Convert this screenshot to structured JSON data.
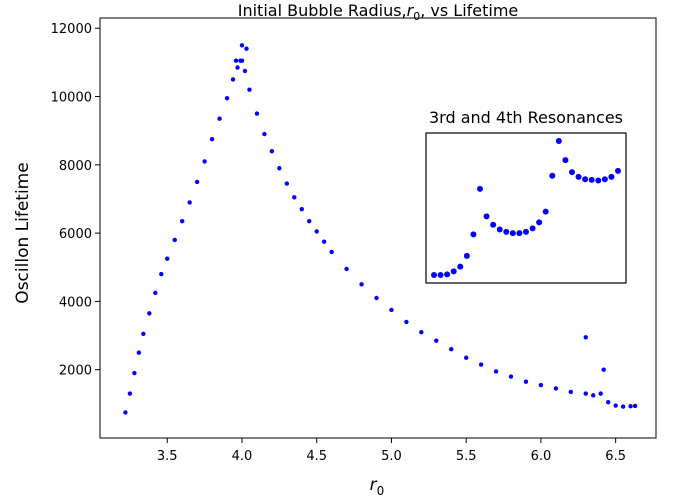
{
  "chart_data": {
    "type": "scatter",
    "title_text": "Initial Bubble Radius,",
    "title_symbol": "r",
    "title_subscript": "0",
    "title_tail": ", vs  Lifetime",
    "xlabel_symbol": "r",
    "xlabel_subscript": "0",
    "ylabel": "Oscillon Lifetime",
    "xlim": [
      3.05,
      6.77
    ],
    "ylim": [
      0,
      12300
    ],
    "xticks": [
      "3.5",
      "4.0",
      "4.5",
      "5.0",
      "5.5",
      "6.0",
      "6.5"
    ],
    "yticks": [
      "2000",
      "4000",
      "6000",
      "8000",
      "10000",
      "12000"
    ],
    "grid": false,
    "marker_color": "#0000ff",
    "series": [
      {
        "x": [
          3.22,
          3.25,
          3.28,
          3.31,
          3.34,
          3.38,
          3.42,
          3.46,
          3.5,
          3.55,
          3.6,
          3.65,
          3.7,
          3.75,
          3.8,
          3.85,
          3.9,
          3.94,
          3.97,
          3.99,
          4.0,
          4.02,
          4.05,
          4.1,
          4.15,
          4.2,
          4.25,
          4.3,
          4.35,
          4.4,
          4.45,
          4.5,
          4.55,
          4.6,
          4.7,
          4.8,
          4.9,
          5.0,
          5.1,
          5.2,
          5.3,
          5.4,
          5.5,
          5.6,
          5.7,
          5.8,
          5.9,
          6.0,
          6.1,
          6.2,
          6.3,
          6.35,
          6.4,
          6.45,
          6.5,
          6.55,
          6.6,
          6.63
        ],
        "y": [
          750,
          1300,
          1900,
          2500,
          3050,
          3650,
          4250,
          4800,
          5250,
          5800,
          6350,
          6900,
          7500,
          8100,
          8750,
          9350,
          9950,
          10500,
          10850,
          11050,
          11050,
          10750,
          10200,
          9500,
          8900,
          8400,
          7900,
          7450,
          7050,
          6700,
          6350,
          6050,
          5750,
          5450,
          4950,
          4500,
          4100,
          3750,
          3400,
          3100,
          2850,
          2600,
          2350,
          2150,
          1950,
          1800,
          1650,
          1550,
          1450,
          1350,
          1300,
          1250,
          1300,
          1050,
          950,
          920,
          930,
          940
        ]
      }
    ],
    "spike_points": [
      {
        "x": 3.96,
        "y": 11050
      },
      {
        "x": 4.0,
        "y": 11500
      },
      {
        "x": 4.03,
        "y": 11400
      },
      {
        "x": 6.3,
        "y": 2950
      },
      {
        "x": 6.42,
        "y": 2000
      }
    ],
    "inset": {
      "title": "3rd and 4th Resonances",
      "x": [
        1,
        2,
        3,
        4,
        5,
        6,
        7,
        8,
        9,
        10,
        11,
        12,
        13,
        14,
        15,
        16,
        17,
        18,
        19,
        20,
        21,
        22,
        23,
        24,
        25,
        26,
        27,
        28,
        29
      ],
      "y": [
        1.2,
        1.2,
        1.25,
        1.5,
        1.9,
        2.8,
        4.6,
        8.4,
        6.1,
        5.4,
        5.0,
        4.8,
        4.7,
        4.7,
        4.8,
        5.1,
        5.6,
        6.5,
        9.5,
        12.4,
        10.8,
        9.8,
        9.4,
        9.2,
        9.15,
        9.1,
        9.2,
        9.4,
        9.9
      ]
    }
  }
}
